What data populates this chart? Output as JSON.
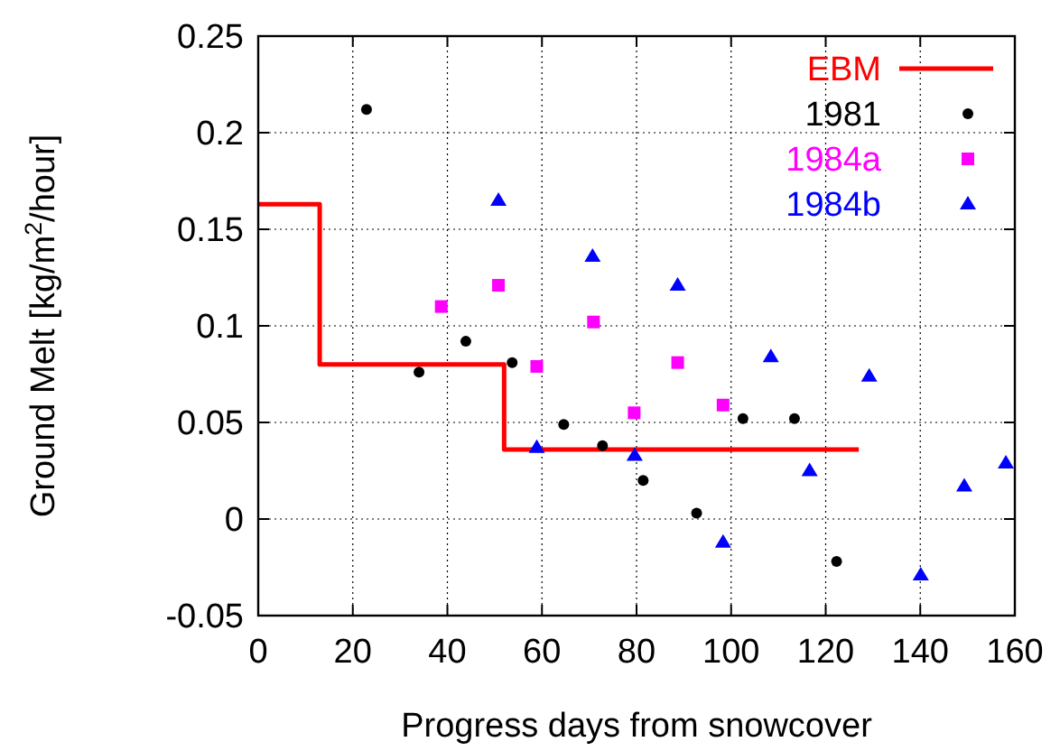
{
  "chart_data": {
    "type": "scatter",
    "xlabel": "Progress days from snowcover",
    "ylabel": "Ground Melt [kg/m$^{2}$/hour]",
    "xlim": [
      0,
      160
    ],
    "xticks": [
      0,
      20,
      40,
      60,
      80,
      100,
      120,
      140,
      160
    ],
    "ylim": [
      -0.05,
      0.25
    ],
    "yticks": [
      -0.05,
      0,
      0.05,
      0.1,
      0.15,
      0.2,
      0.25
    ],
    "grid": true,
    "legend": "top right",
    "series": [
      {
        "name": "EBM",
        "type": "step",
        "color": "#ff0000",
        "marker": "none",
        "x": [
          0,
          13,
          52,
          127
        ],
        "values": [
          0.163,
          0.08,
          0.036,
          0.036
        ]
      },
      {
        "name": "1981",
        "color": "#000000",
        "marker": "circle",
        "x": [
          22.9,
          34.0,
          43.9,
          53.7,
          64.6,
          72.8,
          81.4,
          92.7,
          102.5,
          113.4,
          122.3
        ],
        "values": [
          0.212,
          0.076,
          0.092,
          0.081,
          0.049,
          0.038,
          0.02,
          0.003,
          0.052,
          0.052,
          -0.022
        ]
      },
      {
        "name": "1984a",
        "color": "#ff00ff",
        "marker": "square",
        "x": [
          38.7,
          50.8,
          58.9,
          70.9,
          79.5,
          88.7,
          98.3
        ],
        "values": [
          0.11,
          0.121,
          0.079,
          0.102,
          0.055,
          0.081,
          0.059
        ]
      },
      {
        "name": "1984b",
        "color": "#0000ff",
        "marker": "triangle",
        "x": [
          50.8,
          58.9,
          70.7,
          79.6,
          88.7,
          98.3,
          108.4,
          116.6,
          129.2,
          140.1,
          149.3,
          158.1
        ],
        "values": [
          0.165,
          0.037,
          0.136,
          0.033,
          0.121,
          -0.012,
          0.084,
          0.025,
          0.074,
          -0.029,
          0.017,
          0.029
        ]
      }
    ]
  }
}
